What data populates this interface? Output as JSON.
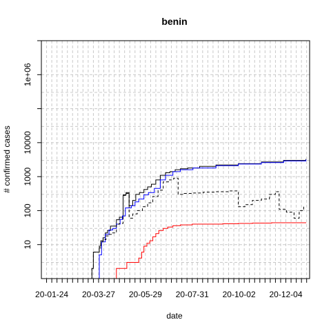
{
  "chart_data": {
    "type": "line",
    "title": "benin",
    "xlabel": "date",
    "ylabel": "# confirmed cases",
    "x_tick_labels": [
      "20-01-24",
      "20-03-27",
      "20-05-29",
      "20-07-31",
      "20-10-02",
      "20-12-04"
    ],
    "x_range": [
      "2020-01-10",
      "2021-01-05"
    ],
    "y_scale": "log",
    "ylim": [
      1,
      10000000
    ],
    "y_tick_labels": [
      {
        "value": 10,
        "label": "10"
      },
      {
        "value": 100,
        "label": "100"
      },
      {
        "value": 1000,
        "label": "1000"
      },
      {
        "value": 10000,
        "label": "10000"
      },
      {
        "value": 1000000,
        "label": "1e+06"
      }
    ],
    "grid": true,
    "series": [
      {
        "color": "#000000",
        "dash": "solid",
        "points": [
          [
            "2020-03-16",
            1
          ],
          [
            "2020-03-18",
            2
          ],
          [
            "2020-03-20",
            6
          ],
          [
            "2020-03-26",
            6
          ],
          [
            "2020-03-28",
            9
          ],
          [
            "2020-03-30",
            13
          ],
          [
            "2020-04-02",
            16
          ],
          [
            "2020-04-05",
            22
          ],
          [
            "2020-04-08",
            26
          ],
          [
            "2020-04-12",
            35
          ],
          [
            "2020-04-16",
            35
          ],
          [
            "2020-04-20",
            54
          ],
          [
            "2020-04-24",
            64
          ],
          [
            "2020-04-27",
            64
          ],
          [
            "2020-04-29",
            290
          ],
          [
            "2020-05-03",
            340
          ],
          [
            "2020-05-05",
            340
          ],
          [
            "2020-05-07",
            140
          ],
          [
            "2020-05-12",
            200
          ],
          [
            "2020-05-16",
            300
          ],
          [
            "2020-05-21",
            340
          ],
          [
            "2020-05-27",
            420
          ],
          [
            "2020-06-01",
            500
          ],
          [
            "2020-06-06",
            600
          ],
          [
            "2020-06-12",
            800
          ],
          [
            "2020-06-18",
            1100
          ],
          [
            "2020-06-25",
            1300
          ],
          [
            "2020-07-01",
            1400
          ],
          [
            "2020-07-08",
            1600
          ],
          [
            "2020-07-15",
            1700
          ],
          [
            "2020-07-25",
            1800
          ],
          [
            "2020-08-10",
            2000
          ],
          [
            "2020-09-01",
            2200
          ],
          [
            "2020-10-01",
            2400
          ],
          [
            "2020-11-01",
            2700
          ],
          [
            "2020-12-01",
            3000
          ],
          [
            "2020-12-31",
            3300
          ]
        ]
      },
      {
        "color": "#0000ff",
        "dash": "solid",
        "points": [
          [
            "2020-03-26",
            1
          ],
          [
            "2020-03-28",
            5
          ],
          [
            "2020-03-31",
            12
          ],
          [
            "2020-04-05",
            20
          ],
          [
            "2020-04-10",
            27
          ],
          [
            "2020-04-15",
            30
          ],
          [
            "2020-04-20",
            40
          ],
          [
            "2020-04-25",
            55
          ],
          [
            "2020-04-28",
            70
          ],
          [
            "2020-05-02",
            120
          ],
          [
            "2020-05-06",
            120
          ],
          [
            "2020-05-10",
            140
          ],
          [
            "2020-05-15",
            180
          ],
          [
            "2020-05-20",
            220
          ],
          [
            "2020-05-27",
            290
          ],
          [
            "2020-06-02",
            340
          ],
          [
            "2020-06-10",
            450
          ],
          [
            "2020-06-18",
            800
          ],
          [
            "2020-06-25",
            1100
          ],
          [
            "2020-07-05",
            1400
          ],
          [
            "2020-07-15",
            1600
          ],
          [
            "2020-08-01",
            1800
          ],
          [
            "2020-09-01",
            2100
          ],
          [
            "2020-10-01",
            2350
          ],
          [
            "2020-11-01",
            2600
          ],
          [
            "2020-12-01",
            2900
          ],
          [
            "2020-12-31",
            3200
          ]
        ]
      },
      {
        "color": "#000000",
        "dash": "dashed",
        "points": [
          [
            "2020-03-16",
            1
          ],
          [
            "2020-03-18",
            2
          ],
          [
            "2020-03-20",
            6
          ],
          [
            "2020-03-26",
            6
          ],
          [
            "2020-03-28",
            8
          ],
          [
            "2020-03-30",
            12
          ],
          [
            "2020-04-02",
            14
          ],
          [
            "2020-04-06",
            18
          ],
          [
            "2020-04-10",
            20
          ],
          [
            "2020-04-15",
            22
          ],
          [
            "2020-04-20",
            40
          ],
          [
            "2020-04-24",
            42
          ],
          [
            "2020-04-27",
            42
          ],
          [
            "2020-04-29",
            280
          ],
          [
            "2020-05-03",
            320
          ],
          [
            "2020-05-05",
            320
          ],
          [
            "2020-05-07",
            60
          ],
          [
            "2020-05-12",
            80
          ],
          [
            "2020-05-18",
            100
          ],
          [
            "2020-05-25",
            130
          ],
          [
            "2020-06-01",
            170
          ],
          [
            "2020-06-08",
            260
          ],
          [
            "2020-06-15",
            400
          ],
          [
            "2020-06-22",
            700
          ],
          [
            "2020-06-29",
            800
          ],
          [
            "2020-07-06",
            900
          ],
          [
            "2020-07-12",
            300
          ],
          [
            "2020-07-20",
            320
          ],
          [
            "2020-08-01",
            330
          ],
          [
            "2020-08-15",
            350
          ],
          [
            "2020-09-01",
            360
          ],
          [
            "2020-09-20",
            380
          ],
          [
            "2020-09-28",
            380
          ],
          [
            "2020-10-01",
            130
          ],
          [
            "2020-10-10",
            150
          ],
          [
            "2020-10-20",
            200
          ],
          [
            "2020-11-01",
            220
          ],
          [
            "2020-11-12",
            300
          ],
          [
            "2020-11-20",
            360
          ],
          [
            "2020-11-25",
            110
          ],
          [
            "2020-12-05",
            90
          ],
          [
            "2020-12-15",
            60
          ],
          [
            "2020-12-22",
            100
          ],
          [
            "2020-12-28",
            150
          ]
        ]
      },
      {
        "color": "#ff0000",
        "dash": "solid",
        "points": [
          [
            "2020-04-06",
            1
          ],
          [
            "2020-04-19",
            1
          ],
          [
            "2020-04-20",
            2
          ],
          [
            "2020-05-03",
            2
          ],
          [
            "2020-05-04",
            3
          ],
          [
            "2020-05-19",
            3
          ],
          [
            "2020-05-20",
            4
          ],
          [
            "2020-05-24",
            6
          ],
          [
            "2020-05-27",
            9
          ],
          [
            "2020-05-31",
            11
          ],
          [
            "2020-06-04",
            13
          ],
          [
            "2020-06-08",
            17
          ],
          [
            "2020-06-12",
            21
          ],
          [
            "2020-06-16",
            26
          ],
          [
            "2020-06-22",
            30
          ],
          [
            "2020-06-28",
            33
          ],
          [
            "2020-07-05",
            36
          ],
          [
            "2020-07-15",
            38
          ],
          [
            "2020-07-31",
            40
          ],
          [
            "2020-08-20",
            40
          ],
          [
            "2020-09-10",
            41
          ],
          [
            "2020-10-01",
            42
          ],
          [
            "2020-10-20",
            43
          ],
          [
            "2020-11-15",
            44
          ],
          [
            "2020-12-31",
            45
          ]
        ]
      }
    ]
  }
}
